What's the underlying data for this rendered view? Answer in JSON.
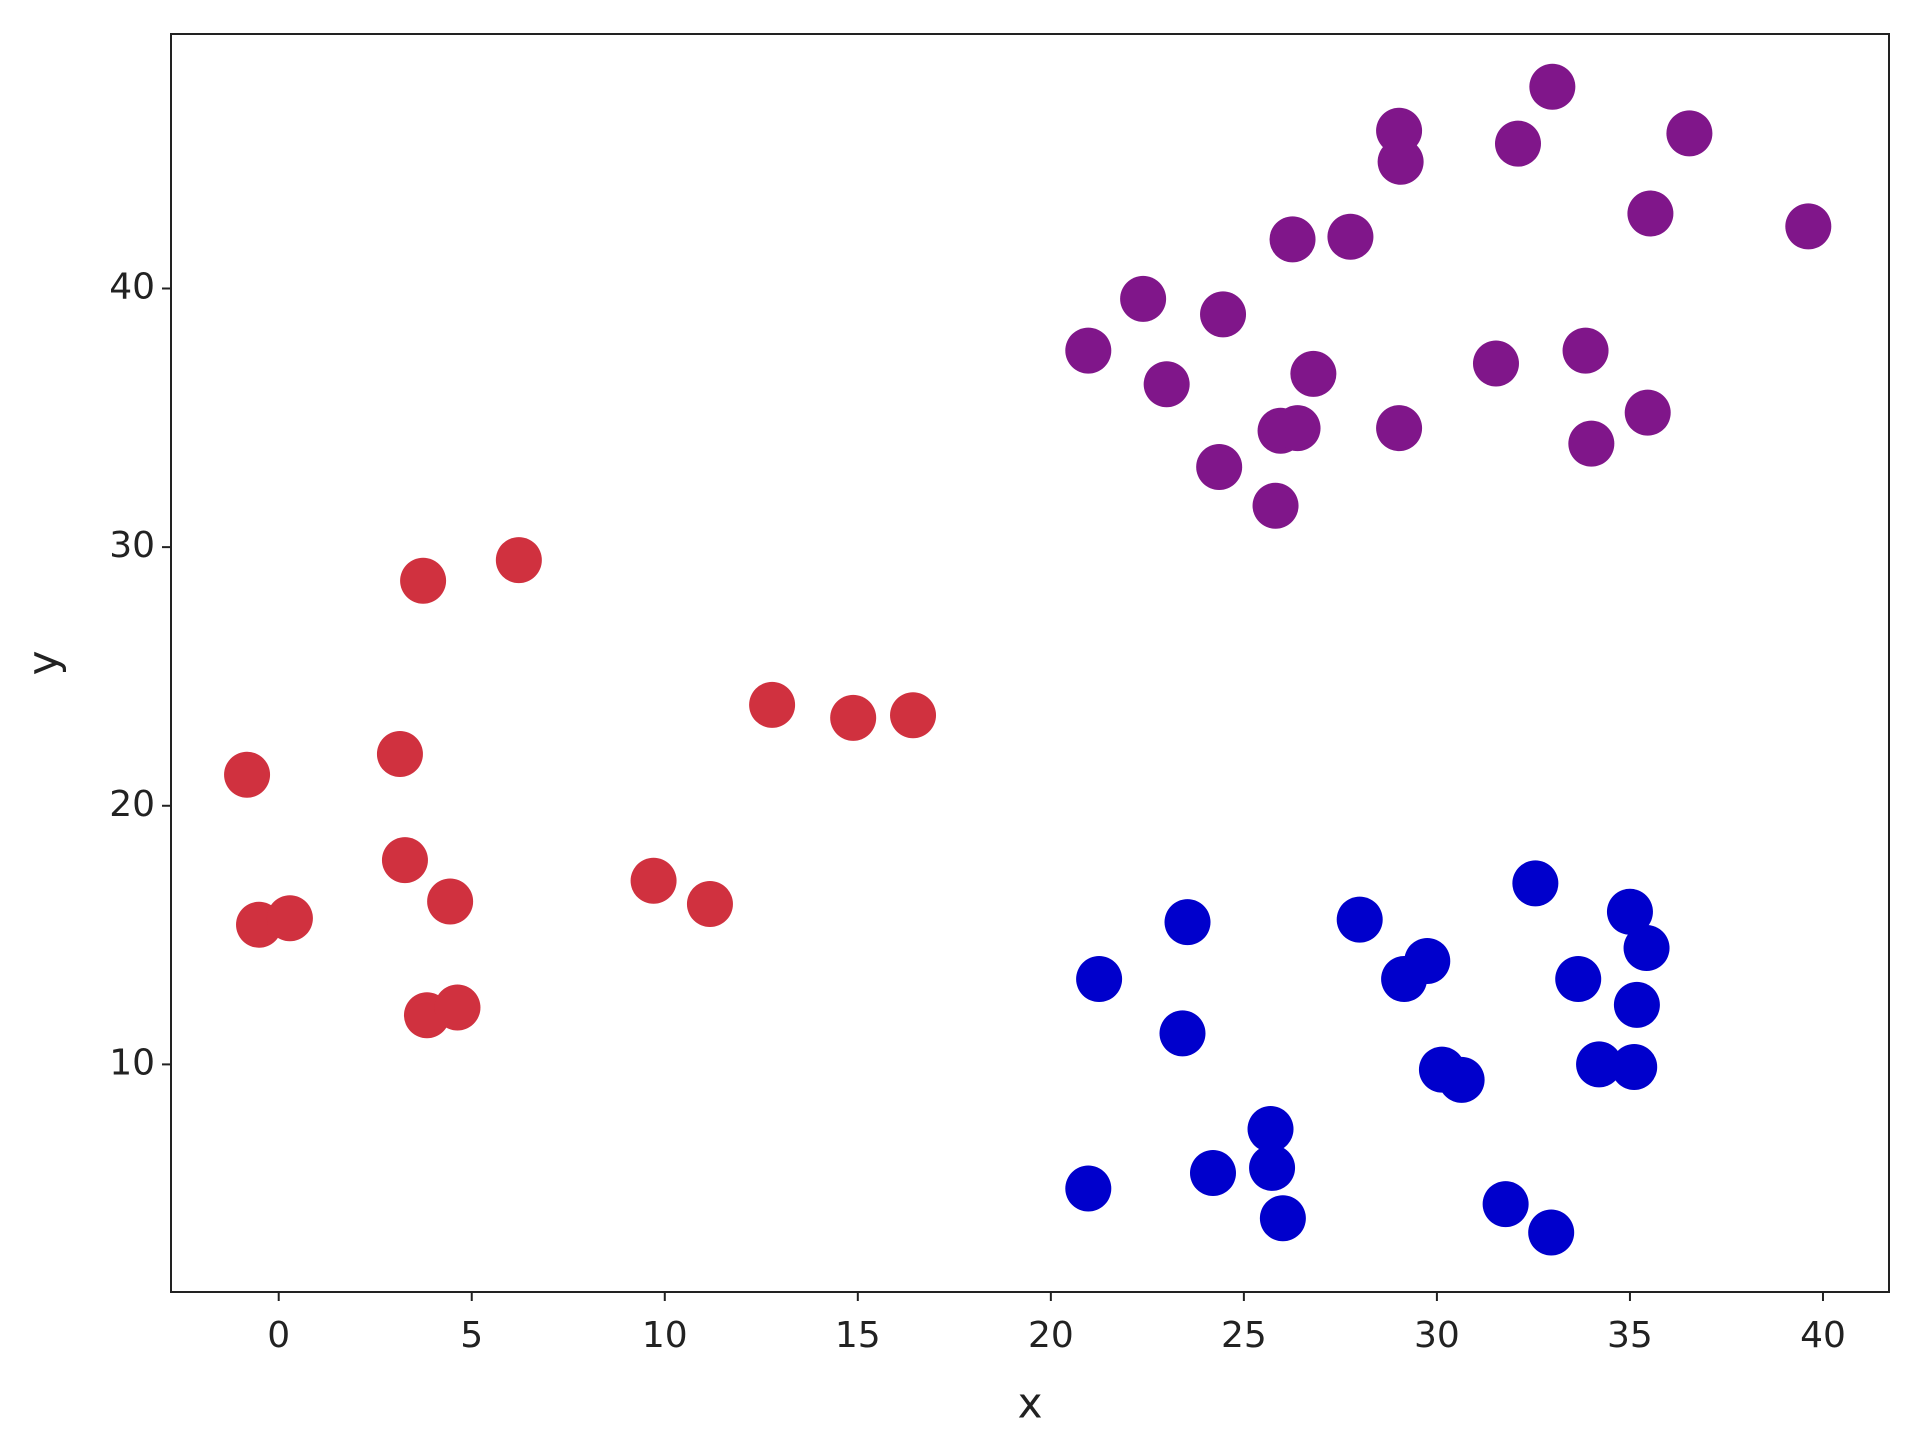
{
  "chart_data": {
    "type": "scatter",
    "x_label": "x",
    "y_label": "y",
    "xlim": [
      -2.79,
      41.71
    ],
    "ylim": [
      1.2,
      49.84
    ],
    "xticks": [
      0,
      5,
      10,
      15,
      20,
      25,
      30,
      35,
      40
    ],
    "yticks": [
      10,
      20,
      30,
      40
    ],
    "grid": false,
    "series": [
      {
        "color": "#d0313f",
        "x": [
          -0.82,
          -0.51,
          0.29,
          3.14,
          3.27,
          3.74,
          3.84,
          4.63,
          4.44,
          6.22,
          9.71,
          11.17,
          12.78,
          14.88,
          16.43
        ],
        "values": [
          21.2,
          15.4,
          15.65,
          22.0,
          17.9,
          28.7,
          11.9,
          12.2,
          16.3,
          29.5,
          17.1,
          16.2,
          23.9,
          23.4,
          23.5
        ]
      },
      {
        "color": "#80168a",
        "x": [
          20.97,
          22.39,
          23.0,
          24.46,
          24.36,
          25.82,
          25.95,
          26.39,
          26.26,
          26.8,
          27.76,
          29.02,
          29.06,
          29.02,
          31.53,
          32.1,
          32.99,
          33.85,
          34.0,
          35.46,
          35.53,
          36.54,
          39.62
        ],
        "values": [
          37.6,
          39.6,
          36.3,
          39.0,
          33.1,
          31.6,
          34.5,
          34.6,
          41.9,
          36.7,
          42.0,
          46.1,
          44.9,
          34.6,
          37.1,
          45.6,
          47.8,
          37.6,
          34.0,
          35.2,
          42.9,
          46.0,
          42.4
        ]
      },
      {
        "color": "#0000cc",
        "x": [
          20.97,
          21.25,
          23.41,
          23.54,
          24.2,
          25.69,
          25.73,
          26.01,
          28.0,
          29.15,
          29.75,
          30.13,
          30.64,
          31.78,
          32.55,
          32.96,
          33.66,
          34.2,
          35.0,
          35.43,
          35.18,
          35.11
        ],
        "values": [
          5.2,
          13.3,
          11.2,
          15.5,
          5.8,
          7.5,
          6.0,
          4.05,
          15.6,
          13.3,
          14.0,
          9.8,
          9.4,
          4.6,
          17.0,
          3.5,
          13.3,
          10.0,
          15.9,
          14.5,
          12.3,
          9.9
        ]
      }
    ]
  }
}
